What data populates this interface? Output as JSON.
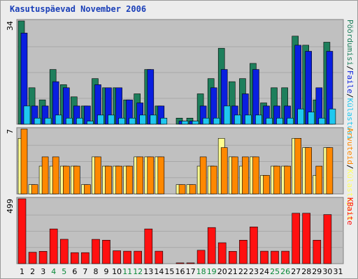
{
  "chart_data": {
    "type": "bar",
    "title": "Kasutuspäevad November 2006",
    "x": [
      "1",
      "2",
      "3",
      "4",
      "5",
      "6",
      "7",
      "8",
      "9",
      "10",
      "11",
      "12",
      "13",
      "14",
      "15",
      "16",
      "17",
      "18",
      "19",
      "20",
      "21",
      "22",
      "23",
      "24",
      "25",
      "26",
      "27",
      "28",
      "29",
      "30",
      "31"
    ],
    "weekend_days": [
      "4",
      "5",
      "11",
      "12",
      "18",
      "19",
      "25",
      "26"
    ],
    "panels": [
      {
        "ymax_label": "34",
        "ymax": 34,
        "series": [
          {
            "name": "Pöördumisi",
            "color": "#1e7f5c",
            "values": [
              34,
              12,
              8,
              18,
              13,
              9,
              6,
              15,
              12,
              12,
              8,
              10,
              18,
              6,
              0,
              2,
              2,
              10,
              15,
              25,
              14,
              15,
              20,
              7,
              12,
              12,
              29,
              26,
              8,
              27,
              0
            ]
          },
          {
            "name": "Faile",
            "color": "#0a1fe0",
            "values": [
              30,
              6,
              6,
              14,
              12,
              6,
              6,
              13,
              12,
              12,
              8,
              7,
              18,
              6,
              0,
              1,
              1,
              6,
              12,
              18,
              6,
              10,
              18,
              6,
              6,
              6,
              26,
              24,
              12,
              24,
              0
            ]
          },
          {
            "name": "Külastusi",
            "color": "#1fc8f0",
            "values": [
              6,
              2,
              2,
              3,
              2,
              2,
              1,
              3,
              3,
              2,
              2,
              3,
              3,
              2,
              0,
              1,
              1,
              2,
              2,
              6,
              3,
              3,
              3,
              2,
              2,
              2,
              5,
              4,
              2,
              5,
              0
            ]
          }
        ],
        "legend_text": [
          "Pöördumisi",
          "/",
          "Faile",
          "/",
          "Külastusi"
        ],
        "legend_colors": [
          "#1e7f5c",
          "#000000",
          "#0a1fe0",
          "#000000",
          "#1fc8f0"
        ]
      },
      {
        "ymax_label": "7",
        "ymax": 7,
        "series": [
          {
            "name": "Külastajaid",
            "color": "#ffff90",
            "values": [
              6,
              1,
              3,
              3,
              3,
              3,
              1,
              4,
              3,
              3,
              3,
              4,
              4,
              4,
              0,
              1,
              1,
              3,
              3,
              6,
              4,
              3,
              4,
              2,
              3,
              3,
              6,
              5,
              2,
              5,
              0
            ]
          },
          {
            "name": "Arvuteid",
            "color": "#ff8800",
            "values": [
              7,
              1,
              4,
              4,
              3,
              3,
              1,
              4,
              3,
              3,
              3,
              4,
              4,
              4,
              0,
              1,
              1,
              4,
              3,
              5,
              4,
              4,
              4,
              2,
              3,
              3,
              6,
              5,
              3,
              5,
              0
            ]
          }
        ],
        "legend_text": [
          "Arvuteid",
          "/",
          "Külastajaid"
        ],
        "legend_colors": [
          "#ff8800",
          "#000000",
          "#ffff60"
        ]
      },
      {
        "ymax_label": "499",
        "ymax": 499,
        "series": [
          {
            "name": "KBaite",
            "color": "#ff1010",
            "values": [
              499,
              88,
              95,
              267,
              188,
              85,
              85,
              187,
              181,
              99,
              96,
              96,
              267,
              96,
              0,
              6,
              6,
              103,
              278,
              161,
              95,
              181,
              283,
              96,
              96,
              96,
              388,
              388,
              181,
              378,
              0
            ]
          }
        ],
        "legend_text": [
          "KBaite"
        ],
        "legend_colors": [
          "#ff1010"
        ]
      }
    ]
  },
  "colors": {
    "plot_bg": "#c0c0c0",
    "frame_bg": "#ececec",
    "weekday_label": "#000000",
    "weekend_label": "#0a8a3a"
  }
}
